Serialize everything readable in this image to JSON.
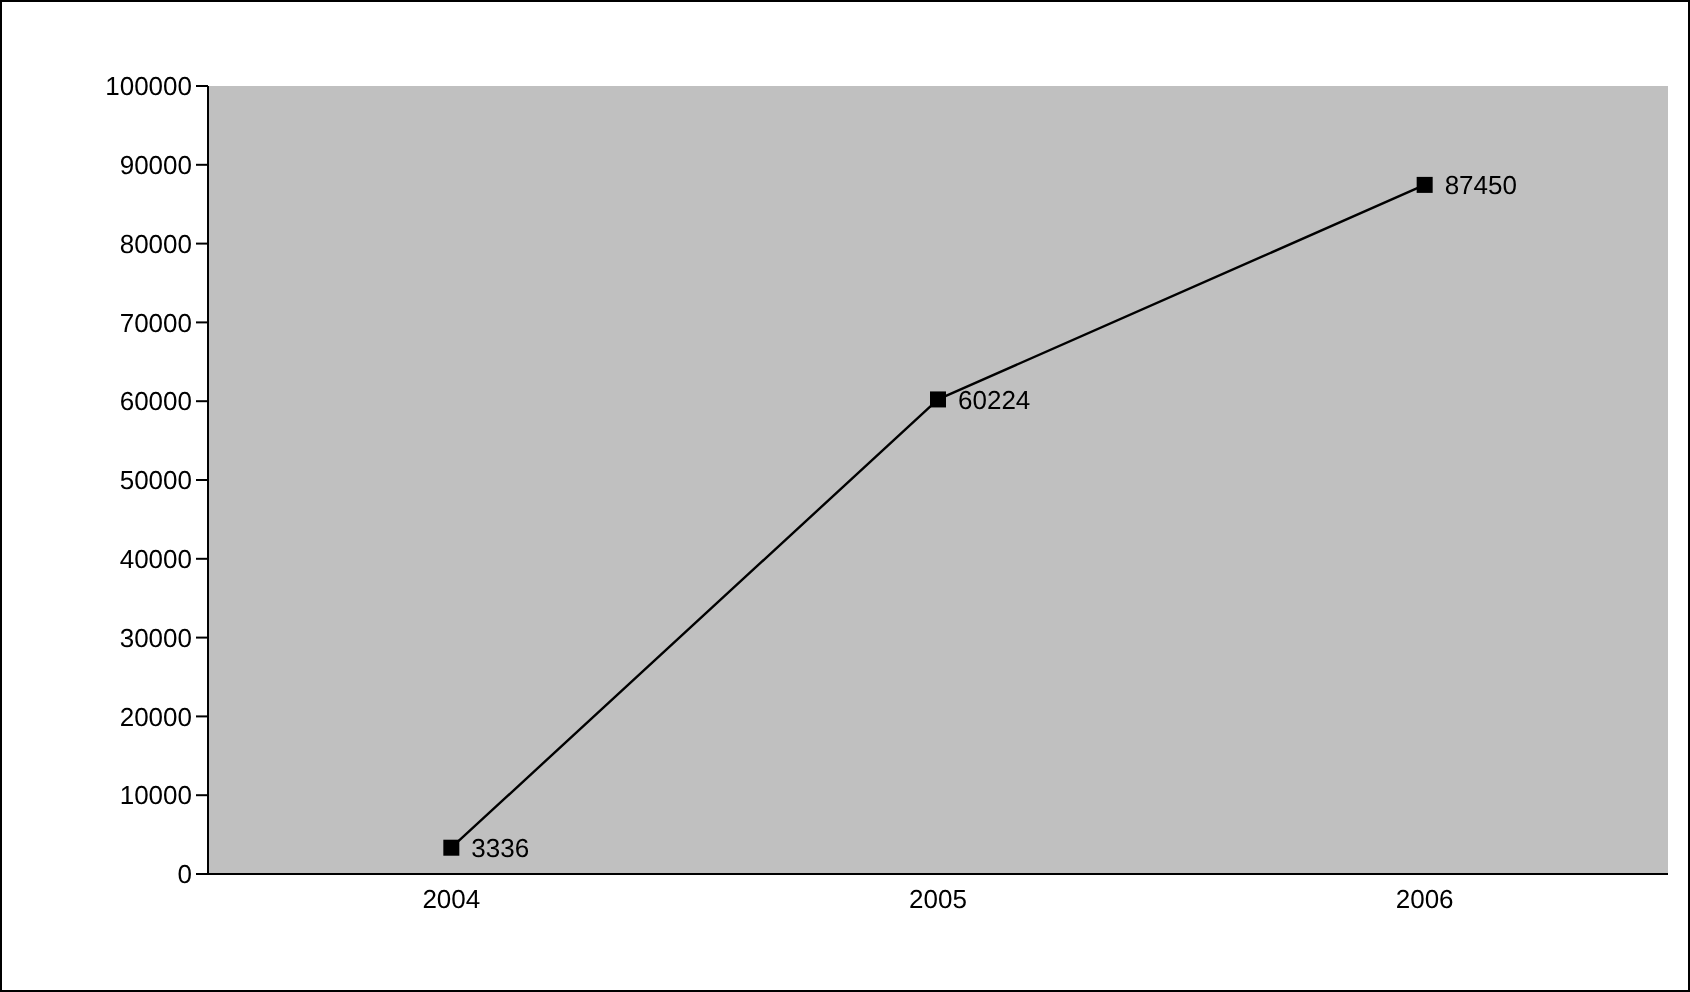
{
  "chart_data": {
    "type": "line",
    "categories": [
      "2004",
      "2005",
      "2006"
    ],
    "series": [
      {
        "color": "#000000",
        "values": [
          3336,
          60224,
          87450
        ]
      }
    ],
    "ylim": [
      0,
      100000
    ],
    "yticks": [
      0,
      10000,
      20000,
      30000,
      40000,
      50000,
      60000,
      70000,
      80000,
      90000,
      100000
    ],
    "marker": "square",
    "data_labels": true
  }
}
